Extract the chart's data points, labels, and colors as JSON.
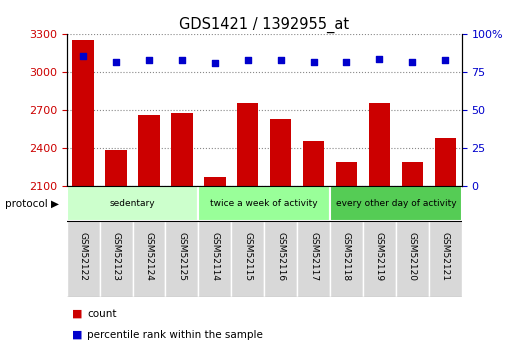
{
  "title": "GDS1421 / 1392955_at",
  "samples": [
    "GSM52122",
    "GSM52123",
    "GSM52124",
    "GSM52125",
    "GSM52114",
    "GSM52115",
    "GSM52116",
    "GSM52117",
    "GSM52118",
    "GSM52119",
    "GSM52120",
    "GSM52121"
  ],
  "counts": [
    3260,
    2390,
    2660,
    2680,
    2170,
    2760,
    2630,
    2460,
    2290,
    2760,
    2290,
    2480
  ],
  "percentile_ranks": [
    86,
    82,
    83,
    83,
    81,
    83,
    83,
    82,
    82,
    84,
    82,
    83
  ],
  "ylim_left": [
    2100,
    3300
  ],
  "ylim_right": [
    0,
    100
  ],
  "yticks_left": [
    2100,
    2400,
    2700,
    3000,
    3300
  ],
  "yticks_right": [
    0,
    25,
    50,
    75,
    100
  ],
  "ytick_labels_right": [
    "0",
    "25",
    "50",
    "75",
    "100%"
  ],
  "bar_color": "#cc0000",
  "dot_color": "#0000cc",
  "groups": [
    {
      "label": "sedentary",
      "start": 0,
      "end": 4,
      "color": "#ccffcc"
    },
    {
      "label": "twice a week of activity",
      "start": 4,
      "end": 8,
      "color": "#99ff99"
    },
    {
      "label": "every other day of activity",
      "start": 8,
      "end": 12,
      "color": "#55cc55"
    }
  ],
  "protocol_label": "protocol",
  "legend_count": "count",
  "legend_percentile": "percentile rank within the sample",
  "tick_color_left": "#cc0000",
  "tick_color_right": "#0000cc",
  "grid_color": "#888888",
  "sample_cell_color": "#d8d8d8",
  "bar_width": 0.65,
  "xlabel_rotation": -90,
  "bg_color": "white"
}
